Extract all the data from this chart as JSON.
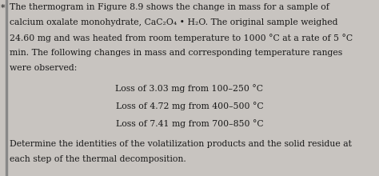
{
  "background_color": "#c8c4c0",
  "text_color": "#1a1a1a",
  "left_bar_color": "#888888",
  "font_size_body": 7.8,
  "font_size_centered": 7.8,
  "font_size_footer": 7.8,
  "para_lines": [
    "The thermogram in Figure 8.9 shows the change in mass for a sample of",
    "calcium oxalate monohydrate, CaC₂O₄ • H₂O. The original sample weighed",
    "24.60 mg and was heated from room temperature to 1000 °C at a rate of 5 °C",
    "min. The following changes in mass and corresponding temperature ranges",
    "were observed:"
  ],
  "centered_lines": [
    "Loss of 3.03 mg from 100–250 °C",
    "Loss of 4.72 mg from 400–500 °C",
    "Loss of 7.41 mg from 700–850 °C"
  ],
  "footer_lines": [
    "Determine the identities of the volatilization products and the solid residue at",
    "each step of the thermal decomposition."
  ],
  "asterisk": "*"
}
